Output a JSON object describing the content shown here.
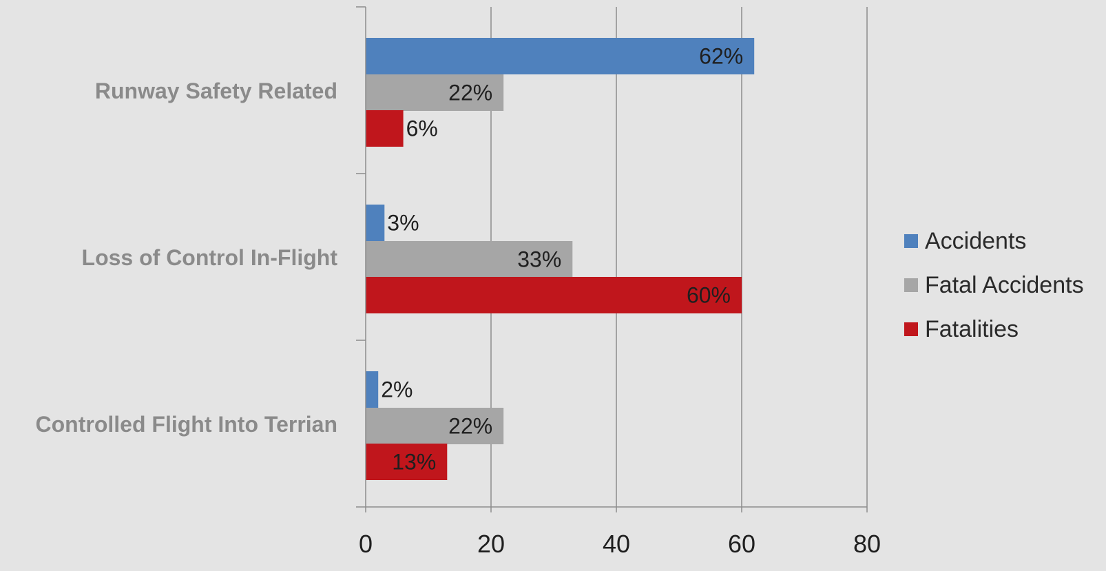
{
  "chart_data": {
    "type": "bar",
    "orientation": "horizontal",
    "categories": [
      "Runway Safety Related",
      "Loss of Control In-Flight",
      "Controlled Flight Into Terrian"
    ],
    "series": [
      {
        "name": "Accidents",
        "color": "#4f81bd",
        "values": [
          62,
          3,
          2
        ],
        "labels": [
          "62%",
          "3%",
          "2%"
        ]
      },
      {
        "name": "Fatal Accidents",
        "color": "#a6a6a6",
        "values": [
          22,
          33,
          22
        ],
        "labels": [
          "22%",
          "33%",
          "22%"
        ]
      },
      {
        "name": "Fatalities",
        "color": "#c0161c",
        "values": [
          6,
          60,
          13
        ],
        "labels": [
          "6%",
          "60%",
          "13%"
        ]
      }
    ],
    "xlim": [
      0,
      80
    ],
    "xticks": [
      "0",
      "20",
      "40",
      "60",
      "80"
    ],
    "grid": true,
    "legend": "right",
    "title": "",
    "xlabel": "",
    "ylabel": ""
  }
}
